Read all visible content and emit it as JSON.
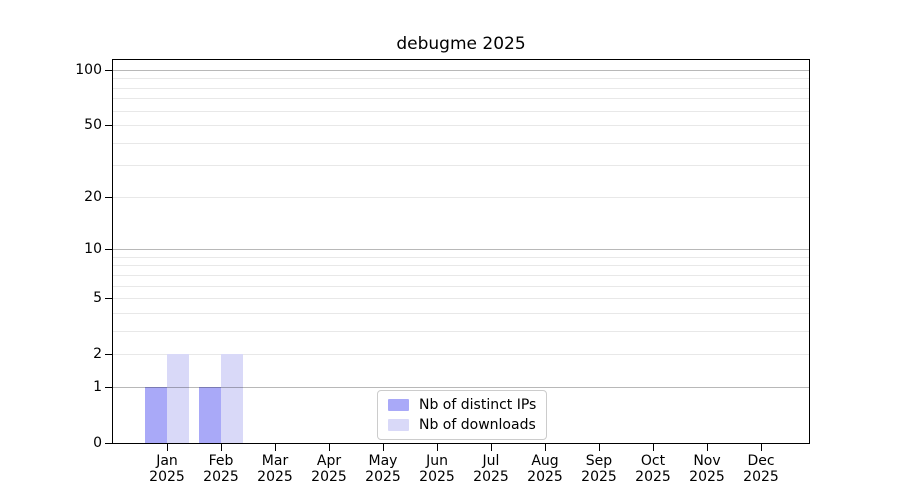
{
  "chart_data": {
    "type": "bar",
    "title": "debugme 2025",
    "categories": [
      "Jan",
      "Feb",
      "Mar",
      "Apr",
      "May",
      "Jun",
      "Jul",
      "Aug",
      "Sep",
      "Oct",
      "Nov",
      "Dec"
    ],
    "category_year": "2025",
    "series": [
      {
        "name": "Nb of distinct IPs",
        "color": "#a9a9f8",
        "values": [
          1,
          1,
          0,
          0,
          0,
          0,
          0,
          0,
          0,
          0,
          0,
          0
        ]
      },
      {
        "name": "Nb of downloads",
        "color": "#d9d9f8",
        "values": [
          2,
          2,
          0,
          0,
          0,
          0,
          0,
          0,
          0,
          0,
          0,
          0
        ]
      }
    ],
    "y_axis": {
      "scale": "log1p",
      "tick_labels": [
        0,
        1,
        2,
        5,
        10,
        20,
        50,
        100
      ],
      "major_grid": [
        1,
        10,
        100
      ],
      "minor_grid": [
        2,
        3,
        4,
        5,
        6,
        7,
        8,
        9,
        20,
        30,
        40,
        50,
        60,
        70,
        80,
        90
      ],
      "ylim": [
        0,
        113
      ]
    },
    "legend": {
      "position": "bottom-center-inside",
      "entries": [
        "Nb of distinct IPs",
        "Nb of downloads"
      ]
    },
    "grid": true,
    "colors": {
      "grid_major": "rgba(0,0,0,0.28)",
      "grid_minor": "rgba(0,0,0,0.09)",
      "axis": "#000000",
      "text": "#000000",
      "legend_border": "#cccccc"
    }
  }
}
